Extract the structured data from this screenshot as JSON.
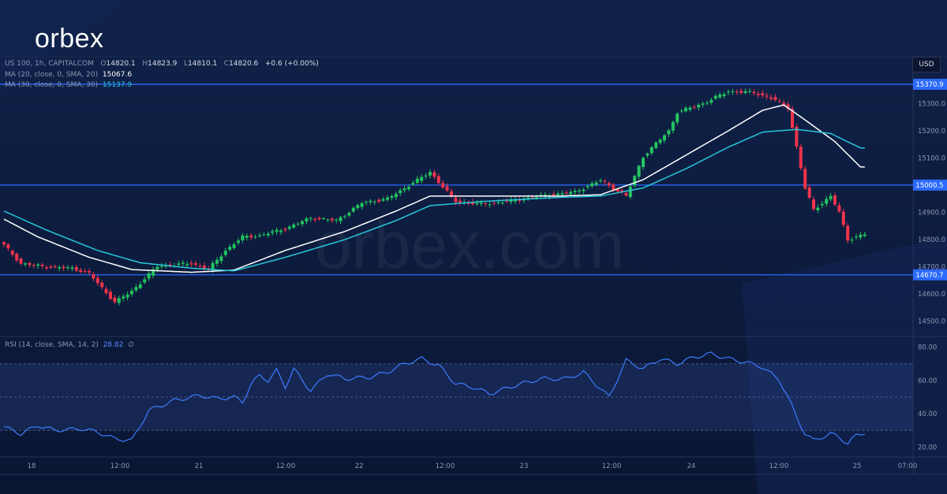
{
  "brand": {
    "logo": "orbex"
  },
  "watermark": "orbex.com",
  "legend": {
    "symbol": "US 100, 1h, CAPITALCOM",
    "open_label": "O",
    "open": "14820.1",
    "high_label": "H",
    "high": "14823.9",
    "low_label": "L",
    "low": "14810.1",
    "close_label": "C",
    "close": "14820.6",
    "change": "+0.6 (+0.00%)",
    "ma20_label": "MA (20, close, 0, SMA, 20)",
    "ma20_value": "15067.6",
    "ma30_label": "MA (30, close, 0, SMA, 30)",
    "ma30_value": "15137.9",
    "rsi_label": "RSI (14, close, SMA, 14, 2)",
    "rsi_value": "28.82",
    "rsi_extra": "∅"
  },
  "currency": "USD",
  "colors": {
    "up": "#22c55e",
    "down": "#f0334a",
    "ma20": "#ffffff",
    "ma30": "#26c6da",
    "level": "#2d6bff",
    "rsi": "#3d7bff",
    "grid": "#1b2a4e"
  },
  "chart_data": [
    {
      "type": "candlestick",
      "title": "US 100, 1h, CAPITALCOM",
      "ylim": [
        14450,
        15420
      ],
      "yticks": [
        "15300.0",
        "15200.0",
        "15100.0",
        "14900.0",
        "14800.0",
        "14700.0",
        "14600.0",
        "14500.0"
      ],
      "xticks": [
        "18",
        "12:00",
        "21",
        "12:00",
        "22",
        "12:00",
        "23",
        "12:00",
        "24",
        "12:00",
        "25",
        "07:00"
      ],
      "xtick_pos": [
        40,
        152,
        252,
        362,
        455,
        564,
        664,
        775,
        876,
        987,
        1086,
        1150
      ],
      "levels": [
        {
          "label": "15370.9",
          "value": 15370.9
        },
        {
          "label": "15000.5",
          "value": 15000.5
        },
        {
          "label": "14670.7",
          "value": 14670.7
        }
      ],
      "anchors_close": [
        [
          0,
          14780
        ],
        [
          4,
          14712
        ],
        [
          10,
          14700
        ],
        [
          16,
          14695
        ],
        [
          20,
          14676
        ],
        [
          22,
          14640
        ],
        [
          26,
          14570
        ],
        [
          30,
          14610
        ],
        [
          36,
          14702
        ],
        [
          44,
          14712
        ],
        [
          48,
          14690
        ],
        [
          52,
          14760
        ],
        [
          56,
          14810
        ],
        [
          60,
          14815
        ],
        [
          66,
          14840
        ],
        [
          72,
          14880
        ],
        [
          78,
          14870
        ],
        [
          84,
          14935
        ],
        [
          90,
          14950
        ],
        [
          100,
          15048
        ],
        [
          106,
          14940
        ],
        [
          112,
          14930
        ],
        [
          118,
          14940
        ],
        [
          126,
          14960
        ],
        [
          134,
          14975
        ],
        [
          140,
          15018
        ],
        [
          146,
          14960
        ],
        [
          150,
          15105
        ],
        [
          156,
          15200
        ],
        [
          158,
          15268
        ],
        [
          164,
          15300
        ],
        [
          170,
          15345
        ],
        [
          176,
          15340
        ],
        [
          180,
          15320
        ],
        [
          184,
          15285
        ],
        [
          186,
          15140
        ],
        [
          188,
          14988
        ],
        [
          190,
          14910
        ],
        [
          194,
          14960
        ],
        [
          196,
          14900
        ],
        [
          198,
          14800
        ],
        [
          202,
          14820
        ]
      ],
      "series": [
        {
          "name": "MA (20, close, 0, SMA, 20)",
          "anchors": [
            [
              0,
              14875
            ],
            [
              8,
              14810
            ],
            [
              20,
              14735
            ],
            [
              30,
              14690
            ],
            [
              44,
              14680
            ],
            [
              54,
              14688
            ],
            [
              66,
              14760
            ],
            [
              80,
              14830
            ],
            [
              92,
              14905
            ],
            [
              100,
              14960
            ],
            [
              112,
              14960
            ],
            [
              130,
              14960
            ],
            [
              140,
              14965
            ],
            [
              150,
              15020
            ],
            [
              160,
              15110
            ],
            [
              170,
              15200
            ],
            [
              178,
              15275
            ],
            [
              183,
              15295
            ],
            [
              188,
              15240
            ],
            [
              195,
              15160
            ],
            [
              201,
              15067
            ]
          ]
        },
        {
          "name": "MA (30, close, 0, SMA, 30)",
          "anchors": [
            [
              0,
              14905
            ],
            [
              10,
              14835
            ],
            [
              22,
              14760
            ],
            [
              32,
              14715
            ],
            [
              44,
              14695
            ],
            [
              54,
              14685
            ],
            [
              66,
              14735
            ],
            [
              80,
              14800
            ],
            [
              92,
              14870
            ],
            [
              100,
              14925
            ],
            [
              112,
              14940
            ],
            [
              130,
              14955
            ],
            [
              140,
              14960
            ],
            [
              150,
              14990
            ],
            [
              160,
              15060
            ],
            [
              170,
              15140
            ],
            [
              178,
              15195
            ],
            [
              186,
              15205
            ],
            [
              194,
              15190
            ],
            [
              201,
              15137
            ]
          ]
        }
      ]
    },
    {
      "type": "line",
      "title": "RSI (14, close, SMA, 14, 2)",
      "ylim": [
        15,
        85
      ],
      "yticks": [
        "80.00",
        "60.00",
        "40.00",
        "20.00"
      ],
      "levels": [
        70,
        50,
        30
      ],
      "series": [
        {
          "name": "RSI (14, close, SMA, 14, 2)",
          "anchors": [
            [
              0,
              32
            ],
            [
              4,
              28
            ],
            [
              8,
              33
            ],
            [
              12,
              30
            ],
            [
              18,
              31
            ],
            [
              22,
              29
            ],
            [
              26,
              25
            ],
            [
              30,
              24
            ],
            [
              34,
              42
            ],
            [
              40,
              48
            ],
            [
              46,
              51
            ],
            [
              50,
              49
            ],
            [
              54,
              50
            ],
            [
              56,
              47
            ],
            [
              58,
              58
            ],
            [
              60,
              63
            ],
            [
              62,
              60
            ],
            [
              64,
              66
            ],
            [
              66,
              56
            ],
            [
              68,
              67
            ],
            [
              70,
              60
            ],
            [
              72,
              54
            ],
            [
              76,
              64
            ],
            [
              80,
              61
            ],
            [
              86,
              62
            ],
            [
              90,
              65
            ],
            [
              94,
              70
            ],
            [
              98,
              73
            ],
            [
              102,
              69
            ],
            [
              106,
              58
            ],
            [
              110,
              56
            ],
            [
              114,
              52
            ],
            [
              120,
              57
            ],
            [
              126,
              61
            ],
            [
              132,
              61
            ],
            [
              136,
              65
            ],
            [
              140,
              55
            ],
            [
              142,
              50
            ],
            [
              146,
              72
            ],
            [
              150,
              67
            ],
            [
              154,
              73
            ],
            [
              158,
              70
            ],
            [
              162,
              74
            ],
            [
              166,
              76
            ],
            [
              170,
              73
            ],
            [
              174,
              71
            ],
            [
              178,
              68
            ],
            [
              182,
              60
            ],
            [
              184,
              50
            ],
            [
              186,
              38
            ],
            [
              188,
              28
            ],
            [
              190,
              24
            ],
            [
              194,
              28
            ],
            [
              196,
              26
            ],
            [
              198,
              22
            ],
            [
              200,
              27
            ],
            [
              202,
              28.8
            ]
          ]
        }
      ]
    }
  ]
}
